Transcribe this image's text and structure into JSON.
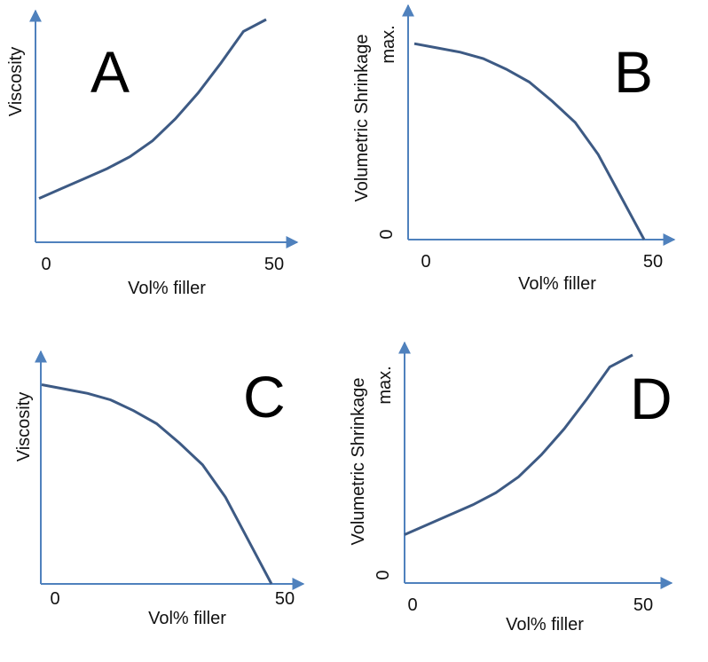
{
  "colors": {
    "axis": "#4f81bd",
    "curve": "#3d5a84",
    "text": "#111111"
  },
  "chart_data": [
    {
      "type": "line",
      "panel_label": "A",
      "xlabel": "Vol% filler",
      "ylabel": "Viscosity",
      "x_ticks": [
        "0",
        "50"
      ],
      "y_ticks": [],
      "xlim": [
        0,
        50
      ],
      "ylim": [
        0,
        1
      ],
      "series": [
        {
          "x": [
            0,
            5,
            10,
            15,
            20,
            25,
            30,
            35,
            40,
            45,
            50
          ],
          "y": [
            0.1,
            0.15,
            0.2,
            0.25,
            0.31,
            0.39,
            0.5,
            0.63,
            0.78,
            0.94,
            1.0
          ]
        }
      ]
    },
    {
      "type": "line",
      "panel_label": "B",
      "xlabel": "Vol% filler",
      "ylabel": "Volumetric Shrinkage",
      "x_ticks": [
        "0",
        "50"
      ],
      "y_ticks": [
        "0",
        "max."
      ],
      "xlim": [
        0,
        50
      ],
      "ylim": [
        0,
        1
      ],
      "series": [
        {
          "x": [
            0,
            5,
            10,
            15,
            20,
            25,
            30,
            35,
            40,
            45,
            50
          ],
          "y": [
            0.92,
            0.9,
            0.88,
            0.85,
            0.8,
            0.74,
            0.65,
            0.55,
            0.4,
            0.2,
            0.0
          ]
        }
      ]
    },
    {
      "type": "line",
      "panel_label": "C",
      "xlabel": "Vol% filler",
      "ylabel": "Viscosity",
      "x_ticks": [
        "0",
        "50"
      ],
      "y_ticks": [],
      "xlim": [
        0,
        50
      ],
      "ylim": [
        0,
        1
      ],
      "series": [
        {
          "x": [
            0,
            5,
            10,
            15,
            20,
            25,
            30,
            35,
            40,
            45,
            50
          ],
          "y": [
            0.92,
            0.9,
            0.88,
            0.85,
            0.8,
            0.74,
            0.65,
            0.55,
            0.4,
            0.2,
            0.0
          ]
        }
      ]
    },
    {
      "type": "line",
      "panel_label": "D",
      "xlabel": "Vol% filler",
      "ylabel": "Volumetric Shrinkage",
      "x_ticks": [
        "0",
        "50"
      ],
      "y_ticks": [
        "0",
        "max."
      ],
      "xlim": [
        0,
        50
      ],
      "ylim": [
        0,
        1
      ],
      "series": [
        {
          "x": [
            0,
            5,
            10,
            15,
            20,
            25,
            30,
            35,
            40,
            45,
            50
          ],
          "y": [
            0.1,
            0.15,
            0.2,
            0.25,
            0.31,
            0.39,
            0.5,
            0.63,
            0.78,
            0.94,
            1.0
          ]
        }
      ]
    }
  ]
}
